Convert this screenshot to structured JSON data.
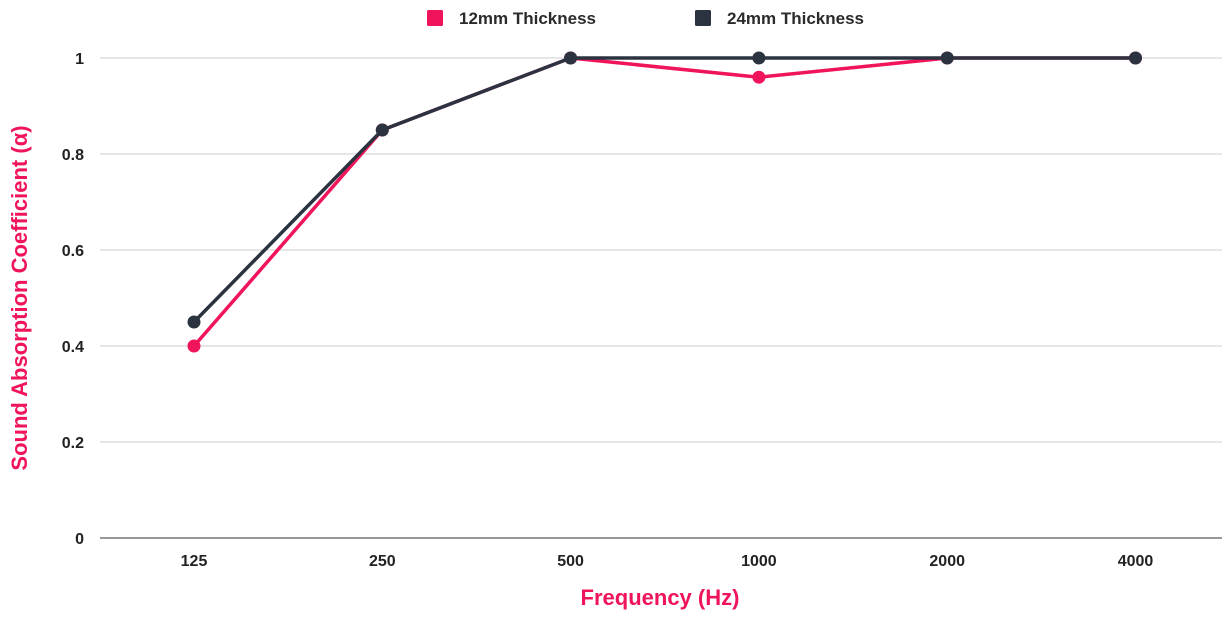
{
  "chart_data": {
    "type": "line",
    "xlabel": "Frequency (Hz)",
    "ylabel": "Sound Absorption Coefficient (α)",
    "categories": [
      "125",
      "250",
      "500",
      "1000",
      "2000",
      "4000"
    ],
    "ylim": [
      0,
      1
    ],
    "yticks": [
      "0",
      "0.2",
      "0.4",
      "0.6",
      "0.8",
      "1"
    ],
    "grid": true,
    "legend": "top-center",
    "series": [
      {
        "name": "12mm Thickness",
        "color": "#f0145a",
        "values": [
          0.4,
          0.85,
          1.0,
          0.96,
          1.0,
          1.0
        ]
      },
      {
        "name": "24mm Thickness",
        "color": "#2b3340",
        "values": [
          0.45,
          0.85,
          1.0,
          1.0,
          1.0,
          1.0
        ]
      }
    ],
    "colors": {
      "axis_title": "#f0145a",
      "grid": "#cccccc"
    }
  }
}
